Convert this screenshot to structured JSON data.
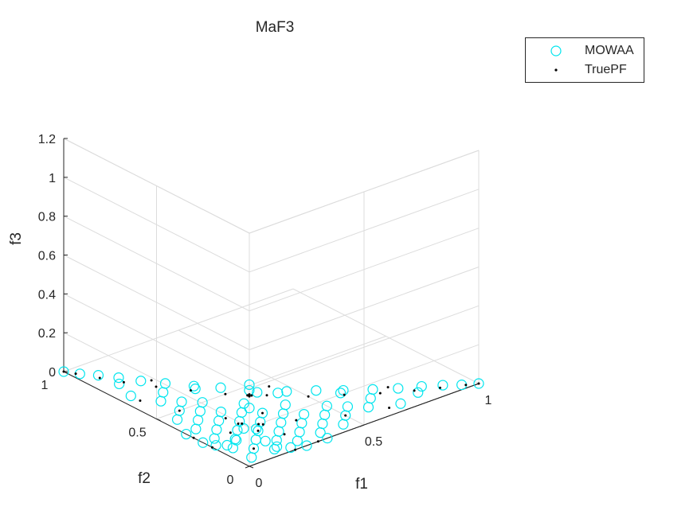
{
  "chart_data": {
    "type": "scatter",
    "projection": "3d",
    "title": "MaF3",
    "xlabel": "f1",
    "ylabel": "f2",
    "zlabel": "f3",
    "xlim": [
      0,
      1
    ],
    "ylim": [
      0,
      1
    ],
    "zlim": [
      0,
      1.2
    ],
    "xticks": [
      "0",
      "0.5",
      "1"
    ],
    "yticks": [
      "0",
      "0.5",
      "1"
    ],
    "zticks": [
      "0",
      "0.2",
      "0.4",
      "0.6",
      "0.8",
      "1",
      "1.2"
    ],
    "grid": true,
    "legend_position": "top-right",
    "series": [
      {
        "name": "MOWAA",
        "marker": "circle",
        "color": "#00e5ee",
        "points": [
          [
            0.0,
            1.0,
            0.0
          ],
          [
            0.03,
            0.95,
            0.0
          ],
          [
            0.07,
            0.9,
            0.0
          ],
          [
            0.11,
            0.84,
            0.0
          ],
          [
            0.15,
            0.77,
            0.0
          ],
          [
            0.2,
            0.7,
            0.0
          ],
          [
            0.26,
            0.62,
            0.0
          ],
          [
            0.32,
            0.55,
            0.0
          ],
          [
            0.38,
            0.47,
            0.0
          ],
          [
            0.44,
            0.39,
            0.0
          ],
          [
            1.0,
            0.0,
            0.0
          ],
          [
            0.95,
            0.03,
            0.0
          ],
          [
            0.9,
            0.07,
            0.0
          ],
          [
            0.84,
            0.11,
            0.0
          ],
          [
            0.77,
            0.15,
            0.0
          ],
          [
            0.7,
            0.2,
            0.0
          ],
          [
            0.62,
            0.26,
            0.0
          ],
          [
            0.55,
            0.32,
            0.0
          ],
          [
            0.47,
            0.38,
            0.0
          ],
          [
            0.39,
            0.44,
            0.0
          ],
          [
            0.0,
            0.0,
            0.42
          ],
          [
            0.0,
            0.0,
            0.3
          ],
          [
            0.03,
            0.0,
            0.18
          ],
          [
            0.0,
            0.03,
            0.18
          ],
          [
            0.07,
            0.0,
            0.1
          ],
          [
            0.0,
            0.07,
            0.1
          ],
          [
            0.12,
            0.0,
            0.05
          ],
          [
            0.0,
            0.12,
            0.05
          ],
          [
            0.18,
            0.0,
            0.02
          ],
          [
            0.0,
            0.18,
            0.02
          ],
          [
            0.25,
            0.0,
            0.0
          ],
          [
            0.0,
            0.25,
            0.0
          ],
          [
            0.34,
            0.0,
            0.0
          ],
          [
            0.0,
            0.34,
            0.0
          ],
          [
            0.1,
            0.1,
            0.0
          ],
          [
            0.2,
            0.1,
            0.0
          ],
          [
            0.1,
            0.2,
            0.0
          ],
          [
            0.2,
            0.2,
            0.0
          ],
          [
            0.3,
            0.1,
            0.0
          ],
          [
            0.1,
            0.3,
            0.0
          ],
          [
            0.3,
            0.2,
            0.0
          ],
          [
            0.2,
            0.3,
            0.0
          ],
          [
            0.4,
            0.1,
            0.0
          ],
          [
            0.1,
            0.4,
            0.0
          ],
          [
            0.3,
            0.3,
            0.0
          ],
          [
            0.4,
            0.2,
            0.0
          ],
          [
            0.2,
            0.4,
            0.0
          ],
          [
            0.5,
            0.1,
            0.0
          ],
          [
            0.1,
            0.5,
            0.0
          ],
          [
            0.15,
            0.15,
            0.0
          ],
          [
            0.25,
            0.15,
            0.0
          ],
          [
            0.15,
            0.25,
            0.0
          ],
          [
            0.35,
            0.15,
            0.0
          ],
          [
            0.15,
            0.35,
            0.0
          ],
          [
            0.6,
            0.1,
            0.0
          ],
          [
            0.1,
            0.6,
            0.0
          ],
          [
            0.5,
            0.2,
            0.0
          ],
          [
            0.2,
            0.5,
            0.0
          ],
          [
            0.7,
            0.05,
            0.0
          ],
          [
            0.05,
            0.7,
            0.0
          ],
          [
            0.05,
            0.05,
            0.0
          ],
          [
            0.25,
            0.25,
            0.0
          ],
          [
            0.35,
            0.25,
            0.0
          ],
          [
            0.25,
            0.35,
            0.0
          ],
          [
            0.45,
            0.15,
            0.0
          ],
          [
            0.15,
            0.45,
            0.0
          ],
          [
            0.55,
            0.15,
            0.0
          ],
          [
            0.15,
            0.55,
            0.0
          ],
          [
            0.4,
            0.3,
            0.0
          ],
          [
            0.3,
            0.4,
            0.0
          ],
          [
            0.05,
            0.15,
            0.0
          ],
          [
            0.15,
            0.05,
            0.0
          ],
          [
            0.05,
            0.25,
            0.0
          ],
          [
            0.25,
            0.05,
            0.0
          ],
          [
            0.05,
            0.35,
            0.0
          ],
          [
            0.35,
            0.05,
            0.0
          ],
          [
            0.05,
            0.45,
            0.0
          ],
          [
            0.45,
            0.05,
            0.0
          ],
          [
            0.65,
            0.15,
            0.0
          ],
          [
            0.15,
            0.65,
            0.0
          ],
          [
            0.8,
            0.08,
            0.0
          ],
          [
            0.08,
            0.8,
            0.0
          ],
          [
            0.6,
            0.25,
            0.0
          ],
          [
            0.25,
            0.6,
            0.0
          ]
        ]
      },
      {
        "name": "TruePF",
        "marker": "point",
        "color": "#000000",
        "points": [
          [
            0.0,
            0.0,
            0.37
          ],
          [
            0.0,
            0.0,
            0.36
          ],
          [
            0.01,
            0.0,
            0.36
          ],
          [
            0.0,
            0.01,
            0.36
          ],
          [
            0.04,
            0.0,
            0.2
          ],
          [
            0.0,
            0.04,
            0.2
          ],
          [
            0.06,
            0.0,
            0.19
          ],
          [
            0.0,
            0.06,
            0.19
          ],
          [
            0.0,
            1.0,
            0.0
          ],
          [
            0.02,
            0.96,
            0.0
          ],
          [
            0.06,
            0.88,
            0.0
          ],
          [
            0.1,
            0.8,
            0.0
          ],
          [
            0.16,
            0.7,
            0.0
          ],
          [
            0.23,
            0.6,
            0.0
          ],
          [
            0.3,
            0.5,
            0.0
          ],
          [
            1.0,
            0.0,
            0.0
          ],
          [
            0.96,
            0.02,
            0.0
          ],
          [
            0.88,
            0.06,
            0.0
          ],
          [
            0.8,
            0.1,
            0.0
          ],
          [
            0.7,
            0.16,
            0.0
          ],
          [
            0.6,
            0.23,
            0.0
          ],
          [
            0.5,
            0.3,
            0.0
          ],
          [
            0.2,
            0.0,
            0.0
          ],
          [
            0.0,
            0.2,
            0.0
          ],
          [
            0.3,
            0.0,
            0.0
          ],
          [
            0.0,
            0.3,
            0.0
          ],
          [
            0.1,
            0.1,
            0.0
          ],
          [
            0.2,
            0.2,
            0.0
          ],
          [
            0.3,
            0.3,
            0.0
          ],
          [
            0.4,
            0.4,
            0.0
          ],
          [
            0.45,
            0.45,
            0.0
          ],
          [
            0.12,
            0.25,
            0.0
          ],
          [
            0.25,
            0.12,
            0.0
          ],
          [
            0.35,
            0.18,
            0.0
          ],
          [
            0.18,
            0.35,
            0.0
          ],
          [
            0.5,
            0.1,
            0.0
          ],
          [
            0.1,
            0.5,
            0.0
          ],
          [
            0.65,
            0.05,
            0.0
          ],
          [
            0.05,
            0.65,
            0.0
          ],
          [
            0.75,
            0.18,
            0.0
          ],
          [
            0.18,
            0.75,
            0.0
          ]
        ]
      }
    ]
  },
  "colors": {
    "mowaa": "#00e5ee",
    "truepf": "#000000",
    "axis": "#262626",
    "grid": "#dcdcdc"
  }
}
